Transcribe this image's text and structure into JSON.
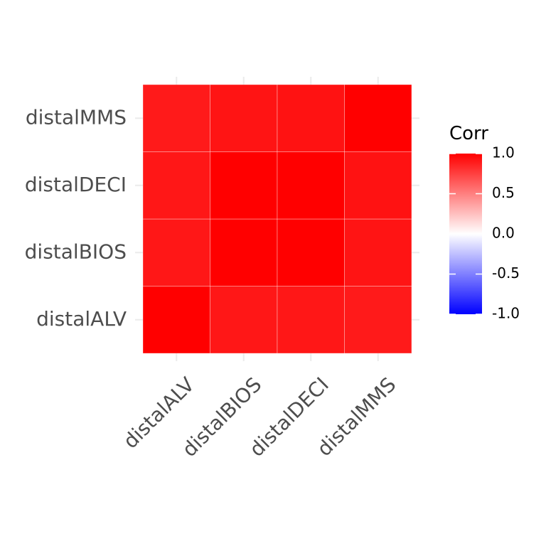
{
  "chart_data": {
    "type": "heatmap",
    "title": "",
    "xlabel": "",
    "ylabel": "",
    "x_categories": [
      "distalALV",
      "distalBIOS",
      "distalDECI",
      "distalMMS"
    ],
    "y_categories": [
      "distalALV",
      "distalBIOS",
      "distalDECI",
      "distalMMS"
    ],
    "values": [
      [
        1.0,
        0.91,
        0.91,
        0.9
      ],
      [
        0.91,
        1.0,
        1.0,
        0.92
      ],
      [
        0.91,
        1.0,
        1.0,
        0.93
      ],
      [
        0.9,
        0.92,
        0.93,
        1.0
      ]
    ],
    "legend": {
      "title": "Corr",
      "ticks": [
        1.0,
        0.5,
        0.0,
        -0.5,
        -1.0
      ],
      "tick_labels": [
        "1.0",
        "0.5",
        "0.0",
        "-0.5",
        "-1.0"
      ],
      "range": [
        -1,
        1
      ],
      "placement": "right"
    },
    "colors": {
      "low": "#0000ff",
      "mid": "#ffffff",
      "high": "#ff0000"
    },
    "grid": true
  }
}
